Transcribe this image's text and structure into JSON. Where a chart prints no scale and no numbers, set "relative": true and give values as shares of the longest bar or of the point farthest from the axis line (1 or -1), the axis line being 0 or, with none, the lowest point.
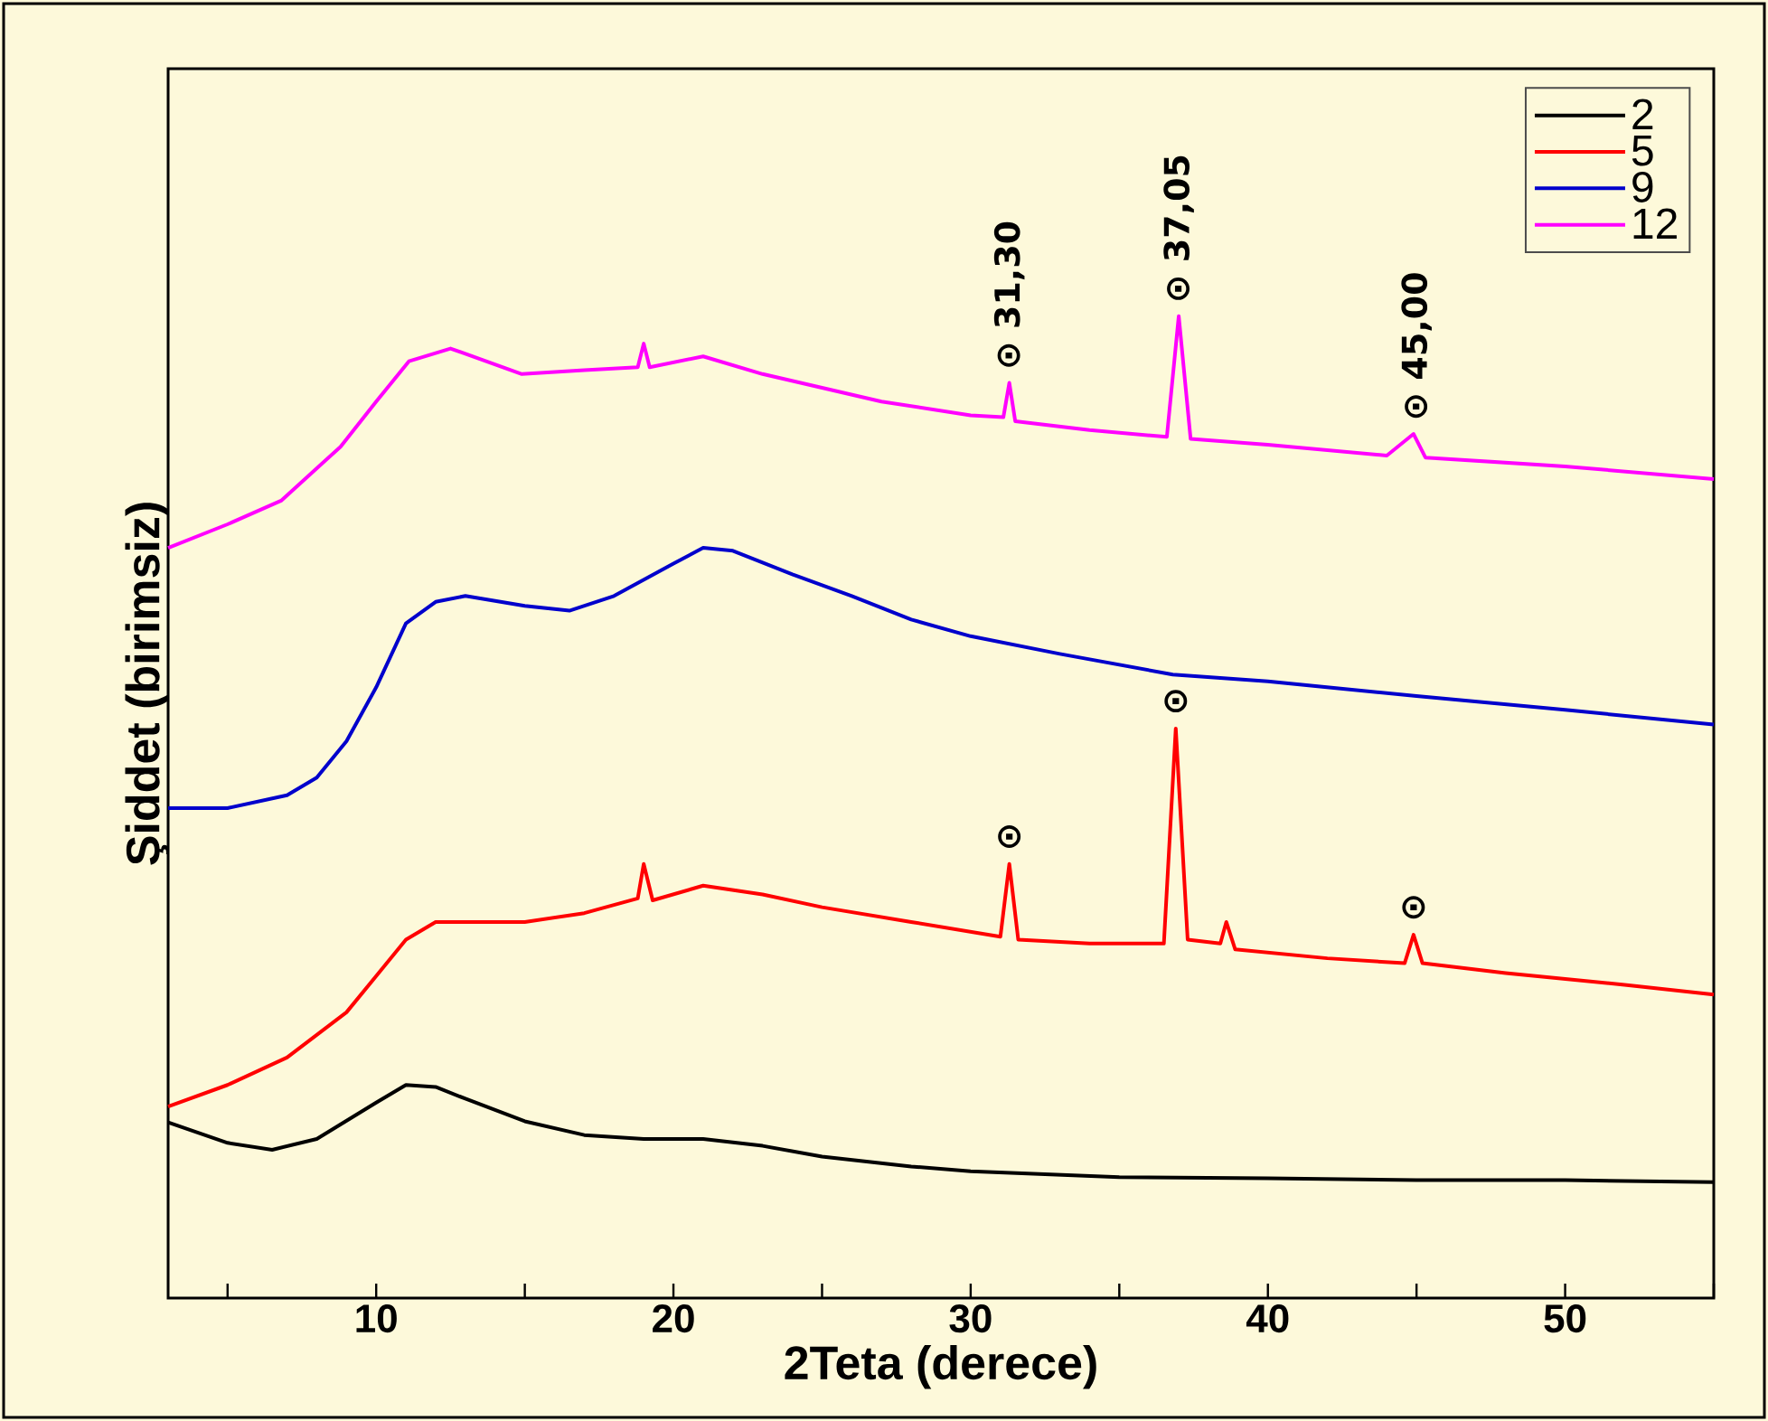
{
  "chart_data": {
    "type": "line",
    "relative": true,
    "xlabel": "2Teta (derece)",
    "ylabel": "Şiddet (birimsiz)",
    "xlim": [
      3,
      55
    ],
    "xticks": [
      {
        "value": 5,
        "label": null
      },
      10,
      {
        "value": 15,
        "label": null
      },
      20,
      {
        "value": 25,
        "label": null
      },
      30,
      {
        "value": 35,
        "label": null
      },
      40,
      {
        "value": 45,
        "label": null
      },
      50,
      {
        "value": 55,
        "label": null
      }
    ],
    "legend": "top right",
    "grid": false,
    "marker": "none",
    "line_style": "solid",
    "series": [
      {
        "name": "2",
        "color": "#000000",
        "x": [
          3,
          5,
          6.5,
          8,
          10,
          11,
          12,
          13,
          15,
          17,
          19,
          21,
          23,
          25,
          28,
          30,
          35,
          40,
          45,
          50,
          55
        ],
        "values": [
          0.179,
          0.158,
          0.151,
          0.162,
          0.199,
          0.217,
          0.215,
          0.203,
          0.18,
          0.166,
          0.162,
          0.162,
          0.155,
          0.144,
          0.134,
          0.129,
          0.123,
          0.122,
          0.12,
          0.12,
          0.118
        ]
      },
      {
        "name": "5",
        "color": "#ff0000",
        "x": [
          3,
          5,
          7,
          9,
          10,
          11,
          12,
          15,
          17,
          18.8,
          19,
          19.3,
          21,
          23,
          25,
          28,
          31,
          31.3,
          31.6,
          34,
          36.5,
          36.9,
          37.3,
          38.4,
          38.6,
          38.9,
          42,
          44.6,
          44.9,
          45.2,
          48,
          52,
          55
        ],
        "values": [
          0.195,
          0.217,
          0.245,
          0.291,
          0.328,
          0.365,
          0.383,
          0.383,
          0.392,
          0.407,
          0.442,
          0.405,
          0.42,
          0.411,
          0.398,
          0.383,
          0.368,
          0.442,
          0.365,
          0.361,
          0.361,
          0.58,
          0.365,
          0.361,
          0.383,
          0.355,
          0.346,
          0.341,
          0.37,
          0.341,
          0.331,
          0.319,
          0.309
        ]
      },
      {
        "name": "9",
        "color": "#0000cc",
        "x": [
          3,
          5,
          7,
          8,
          9,
          10,
          11,
          12,
          13,
          15,
          16.5,
          18,
          20,
          21,
          22,
          24,
          26,
          28,
          30,
          33,
          36.8,
          40,
          45,
          50,
          55
        ],
        "values": [
          0.499,
          0.499,
          0.512,
          0.53,
          0.567,
          0.622,
          0.687,
          0.709,
          0.715,
          0.705,
          0.7,
          0.715,
          0.748,
          0.764,
          0.761,
          0.737,
          0.715,
          0.691,
          0.674,
          0.656,
          0.635,
          0.628,
          0.613,
          0.599,
          0.584
        ]
      },
      {
        "name": "12",
        "color": "#ff00ff",
        "x": [
          3,
          5,
          6.8,
          8.8,
          10,
          11.1,
          12.5,
          14.9,
          17,
          18.8,
          19,
          19.2,
          21,
          23,
          27,
          30,
          31.1,
          31.3,
          31.5,
          34,
          36.6,
          37,
          37.4,
          40,
          44,
          44.9,
          45.3,
          50,
          55
        ],
        "values": [
          0.764,
          0.788,
          0.812,
          0.867,
          0.913,
          0.954,
          0.967,
          0.941,
          0.945,
          0.948,
          0.972,
          0.948,
          0.959,
          0.941,
          0.913,
          0.899,
          0.897,
          0.932,
          0.893,
          0.884,
          0.877,
          1,
          0.875,
          0.869,
          0.858,
          0.88,
          0.856,
          0.847,
          0.834
        ]
      }
    ],
    "annotations": [
      {
        "text": "⊙ 31,30",
        "x": 31.3,
        "y": 0.932
      },
      {
        "text": "⊙ 37,05",
        "x": 37,
        "y": 1
      },
      {
        "text": "⊙ 45,00",
        "x": 45,
        "y": 0.88
      },
      {
        "text": "⊙",
        "x": 31.3,
        "y": 0.442
      },
      {
        "text": "⊙",
        "x": 36.9,
        "y": 0.58
      },
      {
        "text": "⊙",
        "x": 44.9,
        "y": 0.37
      }
    ]
  }
}
